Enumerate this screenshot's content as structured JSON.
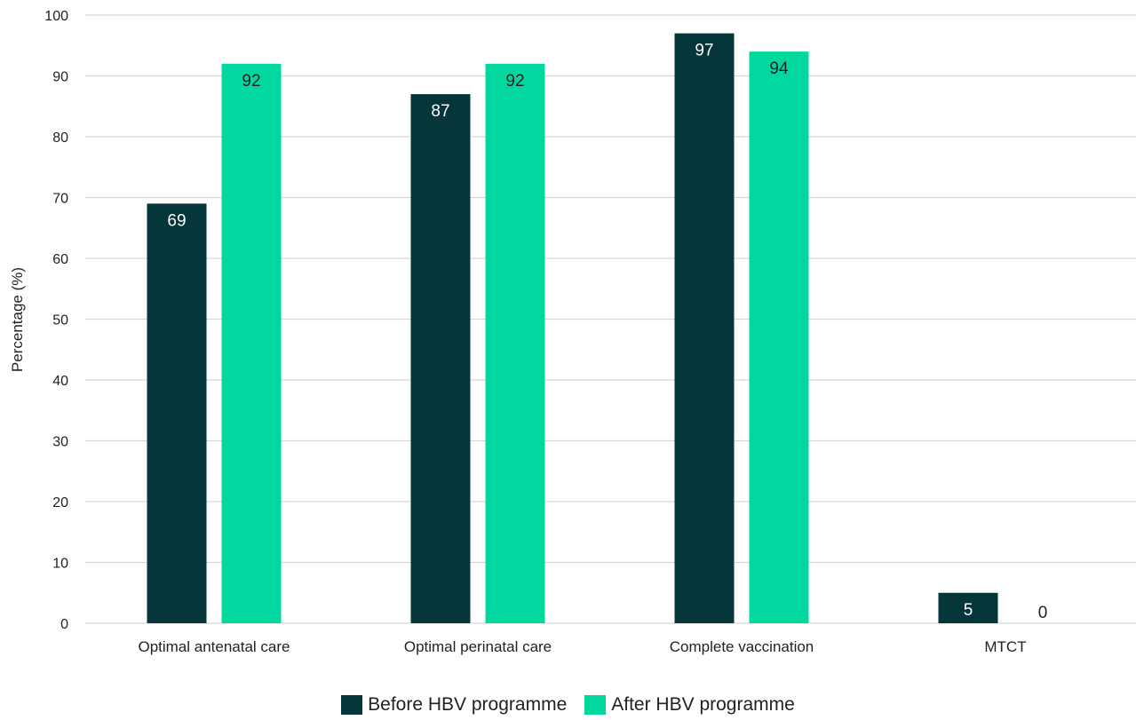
{
  "chart_data": {
    "type": "bar",
    "title": "",
    "xlabel": "",
    "ylabel": "Percentage (%)",
    "ylim": [
      0,
      100
    ],
    "yticks": [
      0,
      10,
      20,
      30,
      40,
      50,
      60,
      70,
      80,
      90,
      100
    ],
    "grid": true,
    "legend_position": "bottom",
    "categories": [
      "Optimal antenatal care",
      "Optimal perinatal care",
      "Complete vaccination",
      "MTCT"
    ],
    "series": [
      {
        "name": "Before HBV programme",
        "color": "#04363a",
        "label_color": "#ffffff",
        "values": [
          69,
          87,
          97,
          5
        ]
      },
      {
        "name": "After HBV programme",
        "color": "#00d8a0",
        "label_color": "#222222",
        "values": [
          92,
          92,
          94,
          0
        ]
      }
    ]
  }
}
